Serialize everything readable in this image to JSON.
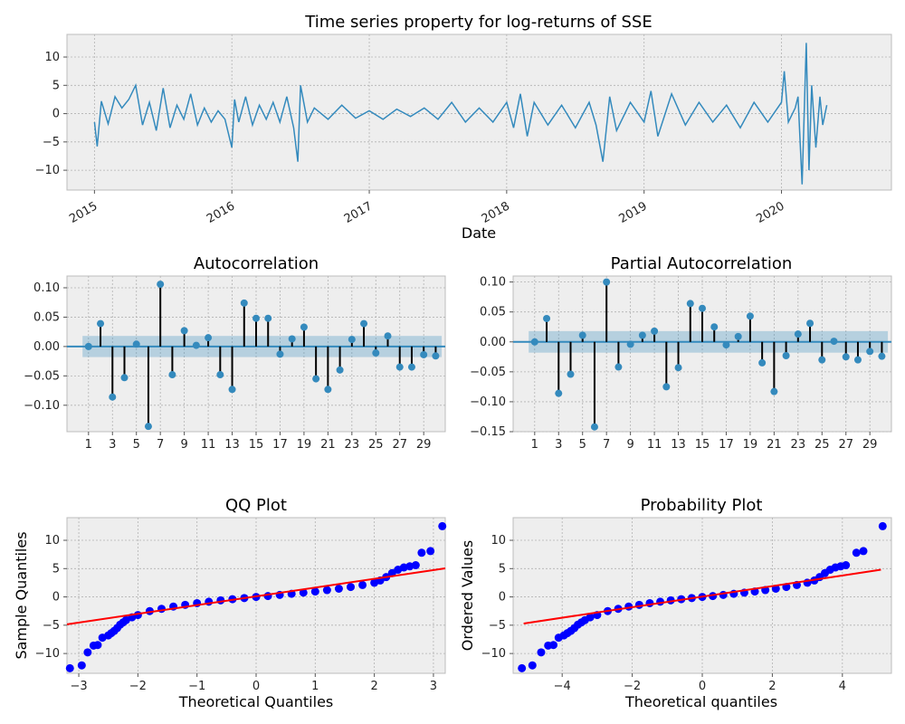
{
  "chart_data": [
    {
      "type": "line",
      "title": "Time series property for log-returns of SSE",
      "xlabel": "Date",
      "ylabel": "",
      "xlim": [
        2014.8,
        2020.8
      ],
      "ylim": [
        -13.5,
        14
      ],
      "xticks": [
        2015,
        2016,
        2017,
        2018,
        2019,
        2020
      ],
      "xtick_labels": [
        "2015",
        "2016",
        "2017",
        "2018",
        "2019",
        "2020"
      ],
      "yticks": [
        -10,
        -5,
        0,
        5,
        10
      ],
      "ytick_labels": [
        "−10",
        "−5",
        "0",
        "5",
        "10"
      ],
      "grid": true,
      "color": "#348abd",
      "date_range": [
        "2015-01",
        "2020-05"
      ],
      "x": [
        2015.0,
        2015.02,
        2015.05,
        2015.1,
        2015.15,
        2015.2,
        2015.25,
        2015.3,
        2015.35,
        2015.4,
        2015.45,
        2015.5,
        2015.55,
        2015.6,
        2015.65,
        2015.7,
        2015.75,
        2015.8,
        2015.85,
        2015.9,
        2015.95,
        2016.0,
        2016.02,
        2016.05,
        2016.1,
        2016.15,
        2016.2,
        2016.25,
        2016.3,
        2016.35,
        2016.4,
        2016.45,
        2016.48,
        2016.5,
        2016.55,
        2016.6,
        2016.7,
        2016.8,
        2016.9,
        2017.0,
        2017.1,
        2017.2,
        2017.3,
        2017.4,
        2017.5,
        2017.6,
        2017.7,
        2017.8,
        2017.9,
        2018.0,
        2018.05,
        2018.1,
        2018.15,
        2018.2,
        2018.3,
        2018.4,
        2018.5,
        2018.6,
        2018.65,
        2018.7,
        2018.75,
        2018.8,
        2018.9,
        2019.0,
        2019.05,
        2019.1,
        2019.2,
        2019.3,
        2019.4,
        2019.5,
        2019.6,
        2019.7,
        2019.8,
        2019.9,
        2020.0,
        2020.02,
        2020.05,
        2020.1,
        2020.12,
        2020.15,
        2020.18,
        2020.2,
        2020.22,
        2020.25,
        2020.28,
        2020.3,
        2020.33
      ],
      "y": [
        -1.5,
        -5.8,
        2.2,
        -1.8,
        3.0,
        1.0,
        2.5,
        5.0,
        -2.0,
        2.0,
        -3.0,
        4.5,
        -2.5,
        1.5,
        -1.0,
        3.5,
        -2.0,
        1.0,
        -1.5,
        0.5,
        -1.0,
        -6.0,
        2.5,
        -1.5,
        3.0,
        -2.0,
        1.5,
        -1.0,
        2.0,
        -1.5,
        3.0,
        -2.5,
        -8.5,
        5.0,
        -1.5,
        1.0,
        -1.0,
        1.5,
        -0.8,
        0.5,
        -1.0,
        0.8,
        -0.5,
        1.0,
        -1.0,
        2.0,
        -1.5,
        1.0,
        -1.5,
        2.0,
        -2.5,
        3.5,
        -4.0,
        2.0,
        -2.0,
        1.5,
        -2.5,
        2.0,
        -2.0,
        -8.5,
        3.0,
        -3.0,
        2.0,
        -1.5,
        4.0,
        -4.0,
        3.5,
        -2.0,
        2.0,
        -1.5,
        1.5,
        -2.5,
        2.0,
        -1.5,
        2.0,
        7.5,
        -1.5,
        1.0,
        3.0,
        -12.5,
        12.5,
        -10.0,
        5.0,
        -6.0,
        3.0,
        -2.0,
        1.5
      ]
    },
    {
      "type": "bar",
      "title": "Autocorrelation",
      "xlim": [
        -0.8,
        30.8
      ],
      "ylim": [
        -0.145,
        0.12
      ],
      "xticks": [
        1,
        3,
        5,
        7,
        9,
        11,
        13,
        15,
        17,
        19,
        21,
        23,
        25,
        27,
        29
      ],
      "yticks": [
        -0.1,
        -0.05,
        0.0,
        0.05,
        0.1
      ],
      "ytick_labels": [
        "−0.10",
        "−0.05",
        "0.00",
        "0.05",
        "0.10"
      ],
      "confidence_band": 0.018,
      "lags": [
        1,
        2,
        3,
        4,
        5,
        6,
        7,
        8,
        9,
        10,
        11,
        12,
        13,
        14,
        15,
        16,
        17,
        18,
        19,
        20,
        21,
        22,
        23,
        24,
        25,
        26,
        27,
        28,
        29,
        30
      ],
      "values": [
        0.0,
        0.039,
        -0.086,
        -0.053,
        0.004,
        -0.136,
        0.106,
        -0.048,
        0.027,
        0.002,
        0.015,
        -0.048,
        -0.073,
        0.074,
        0.048,
        0.048,
        -0.013,
        0.013,
        0.033,
        -0.055,
        -0.073,
        -0.04,
        0.012,
        0.039,
        -0.011,
        0.018,
        -0.035,
        -0.035,
        -0.014,
        -0.016
      ],
      "grid": true
    },
    {
      "type": "bar",
      "title": "Partial Autocorrelation",
      "xlim": [
        -0.8,
        30.8
      ],
      "ylim": [
        -0.15,
        0.11
      ],
      "xticks": [
        1,
        3,
        5,
        7,
        9,
        11,
        13,
        15,
        17,
        19,
        21,
        23,
        25,
        27,
        29
      ],
      "yticks": [
        -0.15,
        -0.1,
        -0.05,
        0.0,
        0.05,
        0.1
      ],
      "ytick_labels": [
        "−0.15",
        "−0.10",
        "−0.05",
        "0.00",
        "0.05",
        "0.10"
      ],
      "confidence_band": 0.018,
      "lags": [
        1,
        2,
        3,
        4,
        5,
        6,
        7,
        8,
        9,
        10,
        11,
        12,
        13,
        14,
        15,
        16,
        17,
        18,
        19,
        20,
        21,
        22,
        23,
        24,
        25,
        26,
        27,
        28,
        29,
        30
      ],
      "values": [
        0.0,
        0.039,
        -0.086,
        -0.054,
        0.011,
        -0.142,
        0.1,
        -0.042,
        -0.004,
        0.011,
        0.018,
        -0.075,
        -0.043,
        0.064,
        0.056,
        0.025,
        -0.005,
        0.009,
        0.043,
        -0.035,
        -0.083,
        -0.023,
        0.013,
        0.031,
        -0.03,
        0.001,
        -0.025,
        -0.03,
        -0.016,
        -0.024
      ],
      "grid": true
    },
    {
      "type": "scatter",
      "title": "QQ Plot",
      "xlabel": "Theoretical Quantiles",
      "ylabel": "Sample Quantiles",
      "xlim": [
        -3.2,
        3.2
      ],
      "ylim": [
        -13.5,
        14
      ],
      "xticks": [
        -3,
        -2,
        -1,
        0,
        1,
        2,
        3
      ],
      "xtick_labels": [
        "−3",
        "−2",
        "−1",
        "0",
        "1",
        "2",
        "3"
      ],
      "yticks": [
        -10,
        -5,
        0,
        5,
        10
      ],
      "ytick_labels": [
        "−10",
        "−5",
        "0",
        "5",
        "10"
      ],
      "point_color": "#0000ff",
      "line_color": "#ff0000",
      "fit_line": [
        [
          -3.2,
          -4.85
        ],
        [
          3.2,
          5.05
        ]
      ],
      "points": [
        [
          -3.15,
          -12.6
        ],
        [
          -2.95,
          -12.1
        ],
        [
          -2.85,
          -9.8
        ],
        [
          -2.75,
          -8.6
        ],
        [
          -2.68,
          -8.5
        ],
        [
          -2.6,
          -7.2
        ],
        [
          -2.5,
          -6.8
        ],
        [
          -2.45,
          -6.4
        ],
        [
          -2.4,
          -6.0
        ],
        [
          -2.35,
          -5.5
        ],
        [
          -2.3,
          -4.9
        ],
        [
          -2.25,
          -4.5
        ],
        [
          -2.2,
          -4.1
        ],
        [
          -2.1,
          -3.6
        ],
        [
          -2.0,
          -3.2
        ],
        [
          -1.8,
          -2.5
        ],
        [
          -1.6,
          -2.1
        ],
        [
          -1.4,
          -1.7
        ],
        [
          -1.2,
          -1.4
        ],
        [
          -1.0,
          -1.1
        ],
        [
          -0.8,
          -0.85
        ],
        [
          -0.6,
          -0.6
        ],
        [
          -0.4,
          -0.4
        ],
        [
          -0.2,
          -0.2
        ],
        [
          0.0,
          0.0
        ],
        [
          0.2,
          0.15
        ],
        [
          0.4,
          0.35
        ],
        [
          0.6,
          0.55
        ],
        [
          0.8,
          0.75
        ],
        [
          1.0,
          0.95
        ],
        [
          1.2,
          1.2
        ],
        [
          1.4,
          1.45
        ],
        [
          1.6,
          1.75
        ],
        [
          1.8,
          2.1
        ],
        [
          2.0,
          2.5
        ],
        [
          2.1,
          2.9
        ],
        [
          2.2,
          3.5
        ],
        [
          2.3,
          4.2
        ],
        [
          2.4,
          4.8
        ],
        [
          2.5,
          5.2
        ],
        [
          2.6,
          5.4
        ],
        [
          2.7,
          5.6
        ],
        [
          2.8,
          7.8
        ],
        [
          2.95,
          8.1
        ],
        [
          3.15,
          12.5
        ]
      ]
    },
    {
      "type": "scatter",
      "title": "Probability Plot",
      "xlabel": "Theoretical quantiles",
      "ylabel": "Ordered Values",
      "xlim": [
        -5.4,
        5.4
      ],
      "ylim": [
        -13.5,
        14
      ],
      "xticks": [
        -4,
        -2,
        0,
        2,
        4
      ],
      "xtick_labels": [
        "−4",
        "−2",
        "0",
        "2",
        "4"
      ],
      "yticks": [
        -10,
        -5,
        0,
        5,
        10
      ],
      "ytick_labels": [
        "−10",
        "−5",
        "0",
        "5",
        "10"
      ],
      "point_color": "#0000ff",
      "line_color": "#ff0000",
      "fit_line": [
        [
          -5.1,
          -4.7
        ],
        [
          5.1,
          4.8
        ]
      ],
      "points": [
        [
          -5.15,
          -12.6
        ],
        [
          -4.85,
          -12.1
        ],
        [
          -4.6,
          -9.8
        ],
        [
          -4.4,
          -8.6
        ],
        [
          -4.25,
          -8.5
        ],
        [
          -4.1,
          -7.2
        ],
        [
          -3.95,
          -6.8
        ],
        [
          -3.85,
          -6.4
        ],
        [
          -3.75,
          -6.0
        ],
        [
          -3.65,
          -5.5
        ],
        [
          -3.55,
          -4.9
        ],
        [
          -3.45,
          -4.5
        ],
        [
          -3.35,
          -4.1
        ],
        [
          -3.2,
          -3.6
        ],
        [
          -3.0,
          -3.2
        ],
        [
          -2.7,
          -2.5
        ],
        [
          -2.4,
          -2.1
        ],
        [
          -2.1,
          -1.7
        ],
        [
          -1.8,
          -1.4
        ],
        [
          -1.5,
          -1.1
        ],
        [
          -1.2,
          -0.85
        ],
        [
          -0.9,
          -0.6
        ],
        [
          -0.6,
          -0.4
        ],
        [
          -0.3,
          -0.2
        ],
        [
          0.0,
          0.0
        ],
        [
          0.3,
          0.15
        ],
        [
          0.6,
          0.35
        ],
        [
          0.9,
          0.55
        ],
        [
          1.2,
          0.75
        ],
        [
          1.5,
          0.95
        ],
        [
          1.8,
          1.2
        ],
        [
          2.1,
          1.45
        ],
        [
          2.4,
          1.75
        ],
        [
          2.7,
          2.1
        ],
        [
          3.0,
          2.5
        ],
        [
          3.2,
          2.9
        ],
        [
          3.35,
          3.5
        ],
        [
          3.5,
          4.2
        ],
        [
          3.65,
          4.8
        ],
        [
          3.8,
          5.2
        ],
        [
          3.95,
          5.4
        ],
        [
          4.1,
          5.6
        ],
        [
          4.4,
          7.8
        ],
        [
          4.6,
          8.1
        ],
        [
          5.15,
          12.5
        ]
      ]
    }
  ]
}
